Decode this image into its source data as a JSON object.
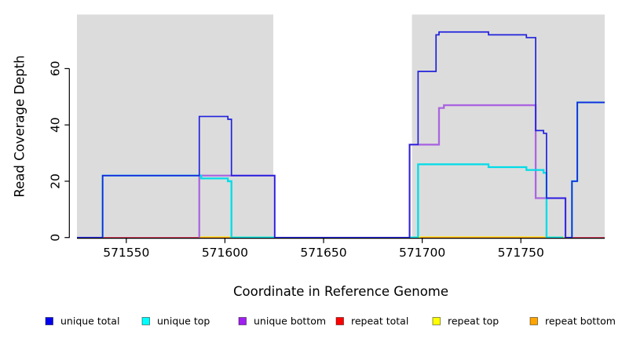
{
  "figure": {
    "xlabel": "Coordinate in Reference Genome",
    "ylabel": "Read Coverage Depth",
    "background_color": "#FFFFFF",
    "shade_color": "#DCDCDC",
    "axis_color": "#000000",
    "x_ticks": [
      571550,
      571600,
      571650,
      571700,
      571750
    ],
    "y_ticks": [
      0,
      20,
      40,
      60
    ],
    "x_range": [
      571525,
      571792.5
    ],
    "y_top_value": 79,
    "shaded_regions": [
      {
        "from": 571525,
        "to": 571624.5
      },
      {
        "from": 571694.8,
        "to": 571792.5
      }
    ]
  },
  "chart_data": {
    "type": "line",
    "step": true,
    "title": "",
    "xlabel": "Coordinate in Reference Genome",
    "ylabel": "Read Coverage Depth",
    "xlim": [
      571525,
      571792.5
    ],
    "ylim": [
      0,
      79
    ],
    "grid": false,
    "legend_position": "bottom",
    "series": [
      {
        "name": "repeat total",
        "color": "#D93C5C",
        "width": 1.5,
        "segments": [
          [
            [
              571538,
              0
            ],
            [
              571625.2,
              0
            ]
          ],
          [
            [
              571693.6,
              0
            ],
            [
              571792.5,
              0
            ]
          ]
        ]
      },
      {
        "name": "repeat top",
        "color": "#FFFF00",
        "width": 2.6,
        "segments": [
          [
            [
              571587,
              0
            ],
            [
              571625.2,
              0
            ]
          ],
          [
            [
              571695,
              0
            ],
            [
              571772,
              0
            ]
          ]
        ]
      },
      {
        "name": "repeat bottom",
        "color": "#FFA500",
        "width": 1.6,
        "segments": [
          [
            [
              571587,
              0
            ],
            [
              571603.3,
              0
            ]
          ],
          [
            [
              571699,
              0
            ],
            [
              571763.3,
              0
            ]
          ]
        ]
      },
      {
        "name": "unique bottom",
        "color": "#AA66E0",
        "width": 2.3,
        "segments": [
          [
            [
              571587,
              0
            ],
            [
              571587,
              22
            ],
            [
              571625.2,
              22
            ],
            [
              571625.2,
              0
            ]
          ],
          [
            [
              571693.6,
              0
            ],
            [
              571693.6,
              33
            ],
            [
              571708.5,
              33
            ],
            [
              571708.5,
              46
            ],
            [
              571711,
              46
            ],
            [
              571711,
              47
            ],
            [
              571757.5,
              47
            ],
            [
              571757.5,
              14
            ],
            [
              571772.6,
              14
            ],
            [
              571772.6,
              0
            ]
          ]
        ]
      },
      {
        "name": "unique top",
        "color": "#00DCE8",
        "width": 2.3,
        "segments": [
          [
            [
              571538,
              0
            ],
            [
              571538,
              22
            ],
            [
              571588,
              22
            ],
            [
              571588,
              21
            ],
            [
              571601.5,
              21
            ],
            [
              571601.5,
              20
            ],
            [
              571603.3,
              20
            ],
            [
              571603.3,
              0
            ],
            [
              571625.2,
              0
            ]
          ],
          [
            [
              571693.6,
              0
            ],
            [
              571697.9,
              0
            ],
            [
              571697.9,
              26
            ],
            [
              571733.6,
              26
            ],
            [
              571733.6,
              25
            ],
            [
              571752.8,
              25
            ],
            [
              571752.8,
              24
            ],
            [
              571761.5,
              24
            ],
            [
              571761.5,
              23
            ],
            [
              571763,
              23
            ],
            [
              571763,
              0
            ],
            [
              571771.5,
              0
            ]
          ],
          [
            [
              571775.9,
              0
            ],
            [
              571775.9,
              20
            ],
            [
              571778.6,
              20
            ],
            [
              571778.6,
              48
            ],
            [
              571792.5,
              48
            ]
          ]
        ]
      },
      {
        "name": "unique total",
        "color": "#2222DD",
        "width": 1.7,
        "segments": [
          [
            [
              571525,
              0
            ],
            [
              571538,
              0
            ],
            [
              571538,
              22
            ],
            [
              571587,
              22
            ],
            [
              571587,
              43
            ],
            [
              571601.5,
              43
            ],
            [
              571601.5,
              42
            ],
            [
              571603.3,
              42
            ],
            [
              571603.3,
              22
            ],
            [
              571625.2,
              22
            ],
            [
              571625.2,
              0
            ],
            [
              571693.6,
              0
            ],
            [
              571693.6,
              33
            ],
            [
              571697.9,
              33
            ],
            [
              571697.9,
              59
            ],
            [
              571707,
              59
            ],
            [
              571707,
              72
            ],
            [
              571708.5,
              72
            ],
            [
              571708.5,
              73
            ],
            [
              571733.6,
              73
            ],
            [
              571733.6,
              72
            ],
            [
              571752.8,
              72
            ],
            [
              571752.8,
              71
            ],
            [
              571757.5,
              71
            ],
            [
              571757.5,
              38
            ],
            [
              571761.5,
              38
            ],
            [
              571761.5,
              37
            ],
            [
              571763,
              37
            ],
            [
              571763,
              14
            ],
            [
              571772.6,
              14
            ],
            [
              571772.6,
              0
            ],
            [
              571775.9,
              0
            ],
            [
              571775.9,
              20
            ],
            [
              571778.6,
              20
            ],
            [
              571778.6,
              48
            ],
            [
              571792.5,
              48
            ]
          ]
        ]
      }
    ]
  },
  "legend": {
    "items": [
      {
        "label": "unique total",
        "color": "#0000EE"
      },
      {
        "label": "unique top",
        "color": "#00FFFF"
      },
      {
        "label": "unique bottom",
        "color": "#A020F0"
      },
      {
        "label": "repeat total",
        "color": "#FF0000"
      },
      {
        "label": "repeat top",
        "color": "#FFFF00"
      },
      {
        "label": "repeat bottom",
        "color": "#FFA500"
      }
    ]
  }
}
